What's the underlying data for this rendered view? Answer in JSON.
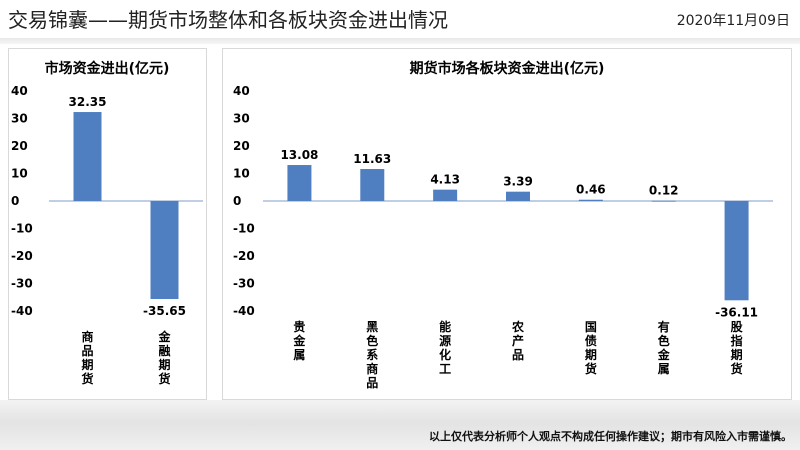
{
  "header": {
    "title": "交易锦囊——期货市场整体和各板块资金进出情况",
    "date": "2020年11月09日"
  },
  "footer": {
    "disclaimer": "以上仅代表分析师个人观点不构成任何操作建议；期市有风险入市需谨慎。"
  },
  "colors": {
    "bar": "#4f7fc0",
    "zero_line": "#7f9cc8"
  },
  "chart_data": [
    {
      "type": "bar",
      "title": "市场资金进出(亿元)",
      "categories": [
        "商品期货",
        "金融期货"
      ],
      "values": [
        32.35,
        -35.65
      ],
      "value_labels": [
        "32.35",
        "-35.65"
      ],
      "yticks": [
        40,
        30,
        20,
        10,
        0,
        -10,
        -20,
        -30,
        -40
      ],
      "ylim": [
        -40,
        40
      ],
      "grid": false
    },
    {
      "type": "bar",
      "title": "期货市场各板块资金进出(亿元)",
      "categories": [
        "贵金属",
        "黑色系商品",
        "能源化工",
        "农产品",
        "国债期货",
        "有色金属",
        "股指期货"
      ],
      "values": [
        13.08,
        11.63,
        4.13,
        3.39,
        0.46,
        0.12,
        -36.11
      ],
      "value_labels": [
        "13.08",
        "11.63",
        "4.13",
        "3.39",
        "0.46",
        "0.12",
        "-36.11"
      ],
      "yticks": [
        40,
        30,
        20,
        10,
        0,
        -10,
        -20,
        -30,
        -40
      ],
      "ylim": [
        -40,
        40
      ],
      "grid": false
    }
  ]
}
